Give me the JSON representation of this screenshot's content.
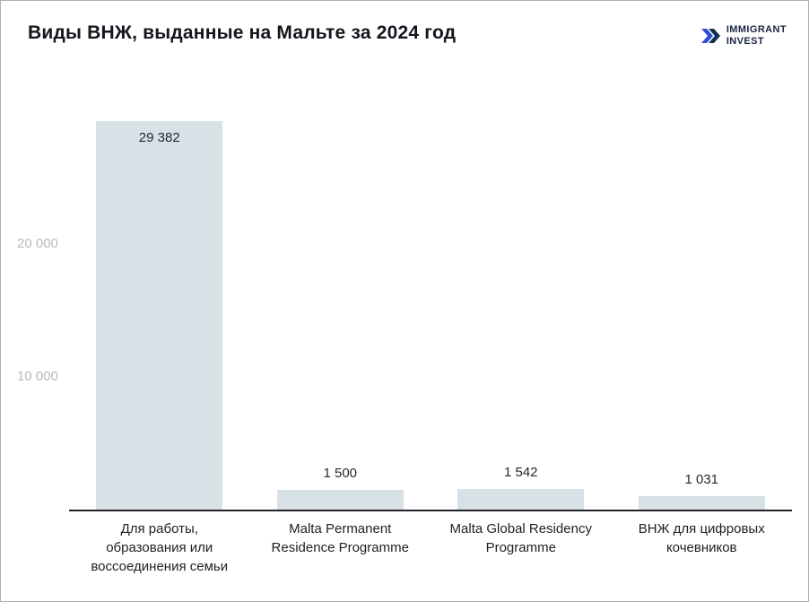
{
  "header": {
    "title": "Виды ВНЖ, выданные на Мальте за 2024 год"
  },
  "brand": {
    "line1": "IMMIGRANT",
    "line2": "INVEST",
    "icon": "double-chevron-right-icon",
    "icon_color_blue": "#2d4fd0",
    "icon_color_navy": "#152a52",
    "text_color": "#1a2742"
  },
  "chart_data": {
    "type": "bar",
    "title": "Виды ВНЖ, выданные на Мальте за 2024 год",
    "categories": [
      [
        "Для работы,",
        "образования или",
        "воссоединения семьи"
      ],
      [
        "Malta Permanent",
        "Residence Programme"
      ],
      [
        "Malta Global Residency",
        "Programme"
      ],
      [
        "ВНЖ для цифровых",
        "кочевников"
      ]
    ],
    "values": [
      29382,
      1500,
      1542,
      1031
    ],
    "value_labels": [
      "29 382",
      "1 500",
      "1 542",
      "1 031"
    ],
    "yticks": [
      {
        "value": 10000,
        "label": "10 000"
      },
      {
        "value": 20000,
        "label": "20 000"
      }
    ],
    "ylim": [
      0,
      30000
    ],
    "xlabel": "",
    "ylabel": "",
    "grid": false,
    "legend": null,
    "bar_color": "#d8e1e6",
    "axis_color": "#23242c",
    "tick_label_color": "#b4bac0"
  }
}
